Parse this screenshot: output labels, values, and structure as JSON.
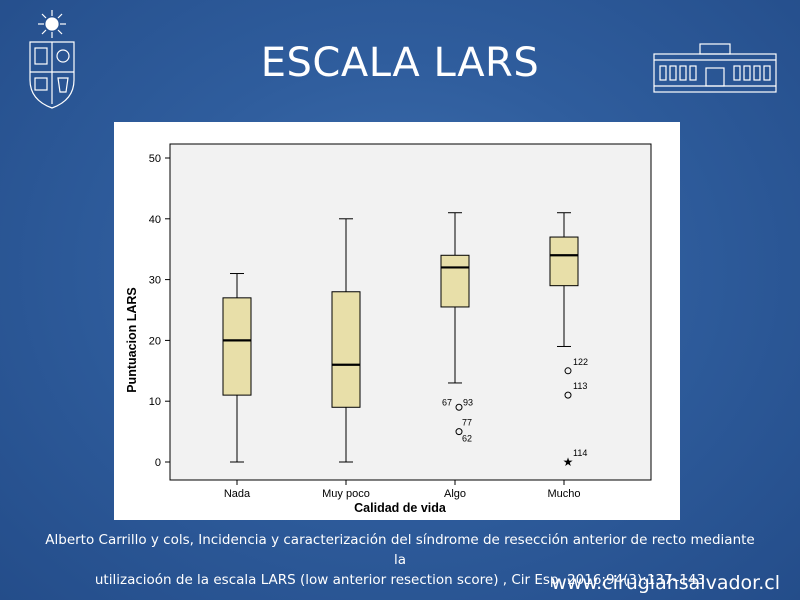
{
  "slide": {
    "title": "ESCALA LARS",
    "caption_line1": "Alberto Carrillo y cols, Incidencia y caracterización del síndrome de resección anterior de recto mediante la",
    "caption_line2": "utilizacioón de la escala LARS (low anterior resection score) , Cir Esp. 2016;94(3):137–143",
    "website": "www.cirugiahsalvador.cl",
    "logo_left_icon": "university-crest-icon",
    "logo_right_icon": "hospital-building-icon"
  },
  "colors": {
    "background": "#2f5d9d",
    "box_fill": "#e8dfa9",
    "panel_fill": "#f2f2f2",
    "axis": "#000000"
  },
  "chart_data": {
    "type": "boxplot",
    "xlabel": "Calidad de vida",
    "ylabel": "Puntuacion LARS",
    "ylim": [
      0,
      50
    ],
    "yticks": [
      0,
      10,
      20,
      30,
      40,
      50
    ],
    "categories": [
      "Nada",
      "Muy poco",
      "Algo",
      "Mucho"
    ],
    "boxes": [
      {
        "category": "Nada",
        "min": 0,
        "q1": 11,
        "median": 20,
        "q3": 27,
        "max": 31,
        "outliers": []
      },
      {
        "category": "Muy poco",
        "min": 0,
        "q1": 9,
        "median": 16,
        "q3": 28,
        "max": 40,
        "outliers": []
      },
      {
        "category": "Algo",
        "min": 13,
        "q1": 25.5,
        "median": 32,
        "q3": 34,
        "max": 41,
        "outliers": [
          {
            "value": 9,
            "label": "67",
            "label2": "93",
            "marker": "circle"
          },
          {
            "value": 5,
            "label": "77",
            "label2": "62",
            "marker": "circle"
          }
        ]
      },
      {
        "category": "Mucho",
        "min": 19,
        "q1": 29,
        "median": 34,
        "q3": 37,
        "max": 41,
        "outliers": [
          {
            "value": 15,
            "label": "122",
            "marker": "circle"
          },
          {
            "value": 11,
            "label": "113",
            "marker": "circle"
          },
          {
            "value": 0,
            "label": "114",
            "marker": "star"
          }
        ]
      }
    ]
  }
}
